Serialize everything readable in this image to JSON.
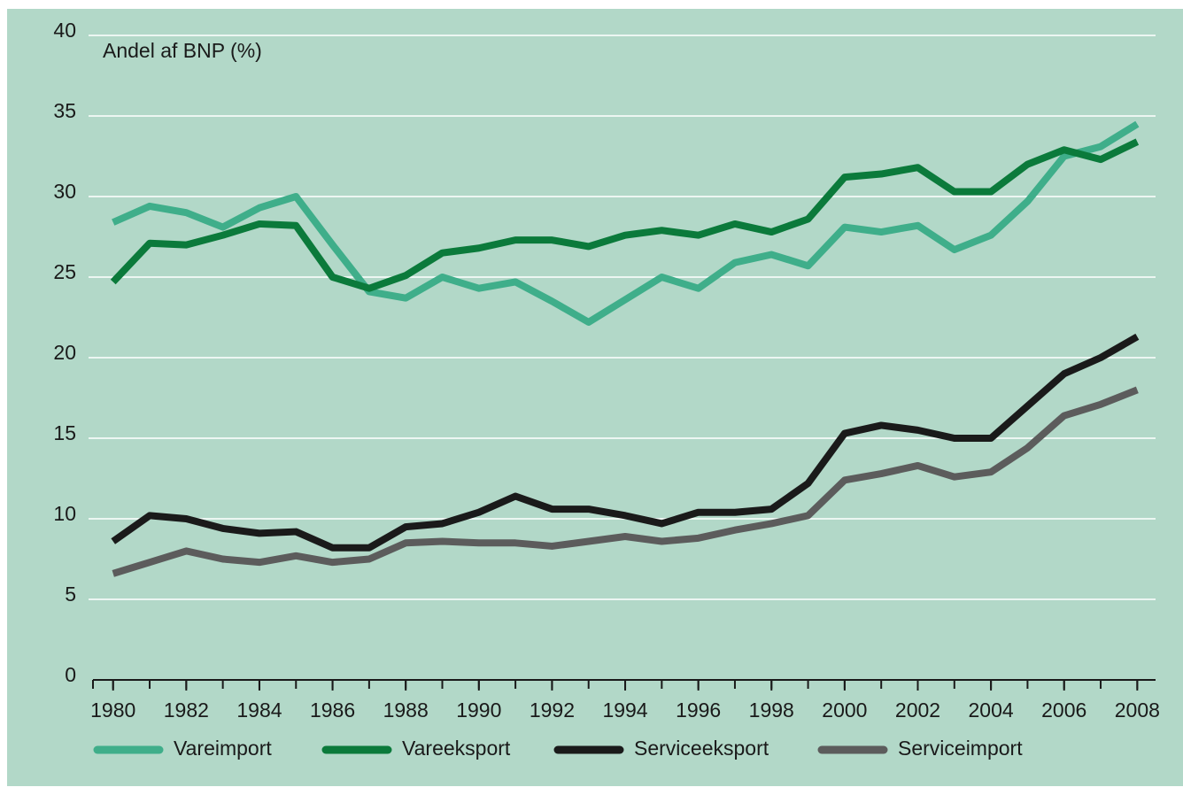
{
  "chart_data": {
    "type": "line",
    "ylabel": "Andel af BNP (%)",
    "x": [
      1980,
      1981,
      1982,
      1983,
      1984,
      1985,
      1986,
      1987,
      1988,
      1989,
      1990,
      1991,
      1992,
      1993,
      1994,
      1995,
      1996,
      1997,
      1998,
      1999,
      2000,
      2001,
      2002,
      2003,
      2004,
      2005,
      2006,
      2007,
      2008
    ],
    "series": [
      {
        "name": "Vareimport",
        "color": "#3fae8a",
        "values": [
          28.4,
          29.4,
          29.0,
          28.1,
          29.3,
          30.0,
          27.0,
          24.1,
          23.7,
          25.0,
          24.3,
          24.7,
          23.5,
          22.2,
          23.6,
          25.0,
          24.3,
          25.9,
          26.4,
          25.7,
          28.1,
          27.8,
          28.2,
          26.7,
          27.6,
          29.7,
          32.5,
          33.1,
          34.5
        ]
      },
      {
        "name": "Vareeksport",
        "color": "#0b7a3b",
        "values": [
          24.7,
          27.1,
          27.0,
          27.6,
          28.3,
          28.2,
          25.0,
          24.3,
          25.1,
          26.5,
          26.8,
          27.3,
          27.3,
          26.9,
          27.6,
          27.9,
          27.6,
          28.3,
          27.8,
          28.6,
          31.2,
          31.4,
          31.8,
          30.3,
          30.3,
          32.0,
          32.9,
          32.3,
          33.4
        ]
      },
      {
        "name": "Serviceeksport",
        "color": "#1a1a1a",
        "values": [
          8.6,
          10.2,
          10.0,
          9.4,
          9.1,
          9.2,
          8.2,
          8.2,
          9.5,
          9.7,
          10.4,
          11.4,
          10.6,
          10.6,
          10.2,
          9.7,
          10.4,
          10.4,
          10.6,
          12.2,
          15.3,
          15.8,
          15.5,
          15.0,
          15.0,
          17.0,
          19.0,
          20.0,
          21.3
        ]
      },
      {
        "name": "Serviceimport",
        "color": "#5c5c5c",
        "values": [
          6.6,
          7.3,
          8.0,
          7.5,
          7.3,
          7.7,
          7.3,
          7.5,
          8.5,
          8.6,
          8.5,
          8.5,
          8.3,
          8.6,
          8.9,
          8.6,
          8.8,
          9.3,
          9.7,
          10.2,
          12.4,
          12.8,
          13.3,
          12.6,
          12.9,
          14.4,
          16.4,
          17.1,
          18.0
        ]
      }
    ],
    "xlim": [
      1979.45,
      2008.5
    ],
    "xticks": [
      1980,
      1982,
      1984,
      1986,
      1988,
      1990,
      1992,
      1994,
      1996,
      1998,
      2000,
      2002,
      2004,
      2006,
      2008
    ],
    "ylim": [
      0,
      40
    ],
    "yticks": [
      0,
      5,
      10,
      15,
      20,
      25,
      30,
      35,
      40
    ],
    "grid": true,
    "legend": "bottom"
  }
}
